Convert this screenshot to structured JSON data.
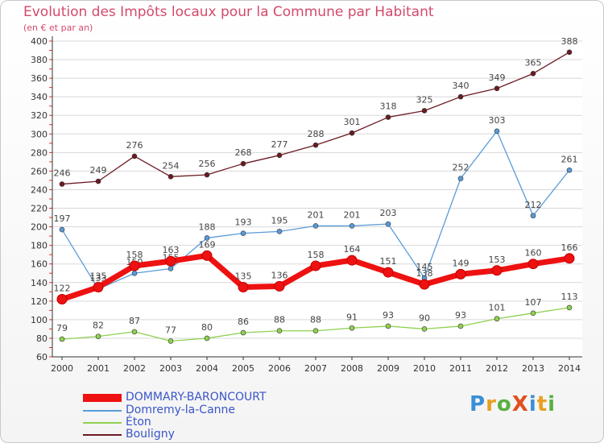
{
  "chart_data": {
    "type": "line",
    "title": "Evolution des Impôts locaux pour la Commune par Habitant",
    "subtitle": "(en € et par an)",
    "xlabel": "",
    "ylabel": "",
    "categories": [
      "2000",
      "2001",
      "2002",
      "2003",
      "2004",
      "2005",
      "2006",
      "2007",
      "2008",
      "2009",
      "2010",
      "2011",
      "2012",
      "2013",
      "2014"
    ],
    "ylim": [
      60,
      400
    ],
    "yticks": [
      60,
      80,
      100,
      120,
      140,
      160,
      180,
      200,
      220,
      240,
      260,
      280,
      300,
      320,
      340,
      360,
      380,
      400
    ],
    "series": [
      {
        "name": "Bouligny",
        "color": "#6b1a22",
        "values": [
          246,
          249,
          276,
          254,
          256,
          268,
          277,
          288,
          301,
          318,
          325,
          340,
          349,
          365,
          388
        ],
        "labels": [
          "246",
          "249",
          "276",
          "254",
          "256",
          "268",
          "277",
          "288",
          "301",
          "318",
          "325",
          "340",
          "349",
          "365",
          "388"
        ]
      },
      {
        "name": "Domremy-la-Canne",
        "color": "#5a9bd8",
        "values": [
          197,
          133,
          150,
          155,
          188,
          193,
          195,
          201,
          201,
          203,
          145,
          252,
          303,
          212,
          261
        ],
        "labels": [
          "197",
          "133",
          "150",
          "155",
          "188",
          "193",
          "195",
          "201",
          "201",
          "203",
          "145",
          "252",
          "303",
          "212",
          "261"
        ]
      },
      {
        "name": "Éton",
        "color": "#8fd050",
        "values": [
          79,
          82,
          87,
          77,
          80,
          86,
          88,
          88,
          91,
          93,
          90,
          93,
          101,
          107,
          113
        ],
        "labels": [
          "79",
          "82",
          "87",
          "77",
          "80",
          "86",
          "88",
          "88",
          "91",
          "93",
          "90",
          "93",
          "101",
          "107",
          "113"
        ]
      },
      {
        "name": "DOMMARY-BARONCOURT",
        "color": "#ee1111",
        "values": [
          122,
          135,
          158,
          163,
          169,
          135,
          136,
          158,
          164,
          151,
          138,
          149,
          153,
          160,
          166
        ],
        "labels": [
          "122",
          "135",
          "158",
          "163",
          "169",
          "135",
          "136",
          "158",
          "164",
          "151",
          "138",
          "149",
          "153",
          "160",
          "166"
        ]
      }
    ]
  },
  "legend": {
    "items": [
      "DOMMARY-BARONCOURT",
      "Domremy-la-Canne",
      "Éton",
      "Bouligny"
    ]
  },
  "logo": {
    "text": "ProXiti"
  }
}
